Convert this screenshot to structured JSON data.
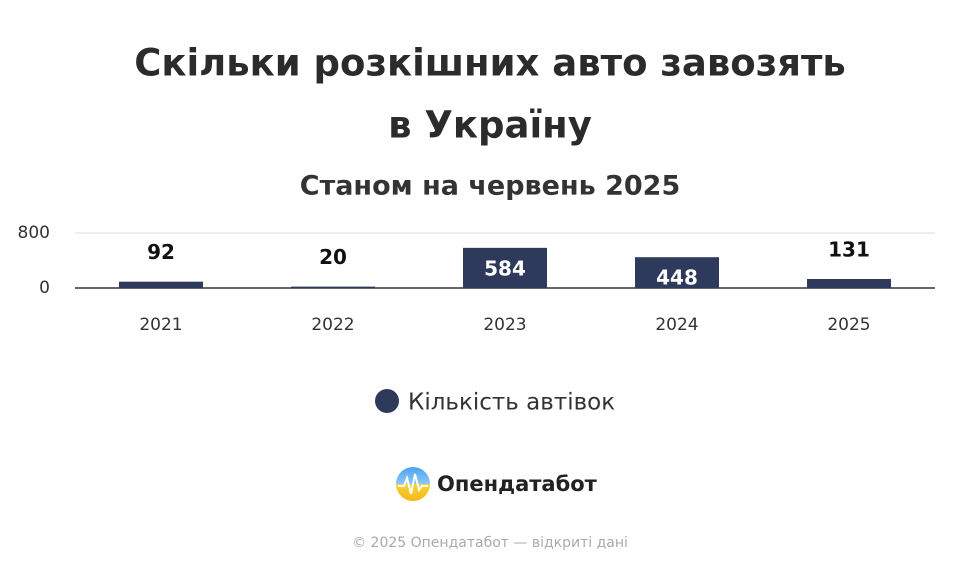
{
  "chart_data": {
    "type": "bar",
    "title": [
      "Скільки розкішних авто завозять",
      "в Україну"
    ],
    "subtitle": "Станом на червень 2025",
    "categories": [
      "2021",
      "2022",
      "2023",
      "2024",
      "2025"
    ],
    "series": [
      {
        "name": "Кількість автівок",
        "color": "#2d3a5c",
        "values": [
          92,
          20,
          584,
          448,
          131
        ]
      }
    ],
    "ylim": [
      0,
      800
    ],
    "yticks": [
      0,
      800
    ],
    "grid": true,
    "legend": "bottom"
  },
  "logo": "Опендатабот",
  "footer": "© 2025 Опендатабот — відкриті дані"
}
